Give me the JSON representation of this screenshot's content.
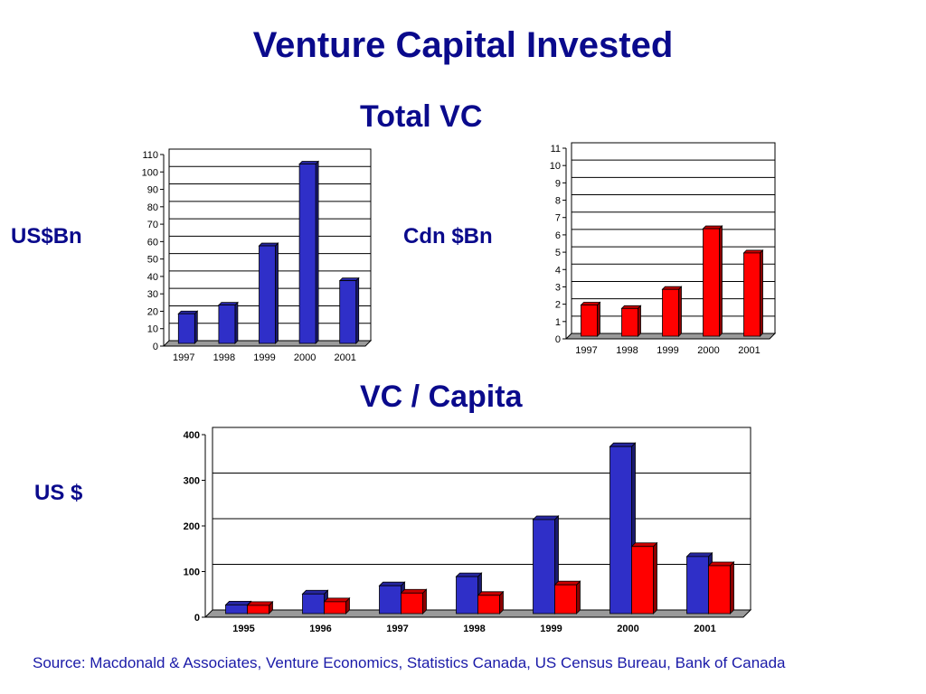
{
  "page": {
    "title": "Venture Capital Invested",
    "total_vc_title": "Total VC",
    "per_capita_title": "VC / Capita",
    "us_bn_label": "US$Bn",
    "cdn_bn_label": "Cdn $Bn",
    "us_dollar_label": "US $",
    "source": "Source: Macdonald & Associates, Venture Economics, Statistics Canada, US Census Bureau, Bank of Canada"
  },
  "colors": {
    "title": "#0a0a8c",
    "us_series": "#2f2fc8",
    "canada_series": "#ff0000"
  },
  "chart_data": [
    {
      "type": "bar",
      "title": "",
      "ylabel": "US$Bn",
      "categories": [
        "1997",
        "1998",
        "1999",
        "2000",
        "2001"
      ],
      "series": [
        {
          "values": [
            17,
            22,
            56,
            103,
            36
          ],
          "color": "#2f2fc8"
        }
      ],
      "ylim": [
        0,
        110
      ],
      "yticks": [
        0,
        10,
        20,
        30,
        40,
        50,
        60,
        70,
        80,
        90,
        100,
        110
      ],
      "grid": true
    },
    {
      "type": "bar",
      "title": "",
      "ylabel": "Cdn $Bn",
      "categories": [
        "1997",
        "1998",
        "1999",
        "2000",
        "2001"
      ],
      "series": [
        {
          "values": [
            1.8,
            1.6,
            2.7,
            6.2,
            4.8
          ],
          "color": "#ff0000"
        }
      ],
      "ylim": [
        0,
        11
      ],
      "yticks": [
        0,
        1,
        2,
        3,
        4,
        5,
        6,
        7,
        8,
        9,
        10,
        11
      ],
      "grid": true
    },
    {
      "type": "bar",
      "title": "",
      "ylabel": "US $",
      "categories": [
        "1995",
        "1996",
        "1997",
        "1998",
        "1999",
        "2000",
        "2001"
      ],
      "series": [
        {
          "values": [
            19,
            43,
            61,
            81,
            206,
            366,
            125
          ],
          "color": "#2f2fc8"
        },
        {
          "values": [
            18,
            26,
            45,
            40,
            63,
            147,
            105
          ],
          "color": "#ff0000"
        }
      ],
      "ylim": [
        0,
        400
      ],
      "yticks": [
        0,
        100,
        200,
        300,
        400
      ],
      "grid": true
    }
  ]
}
